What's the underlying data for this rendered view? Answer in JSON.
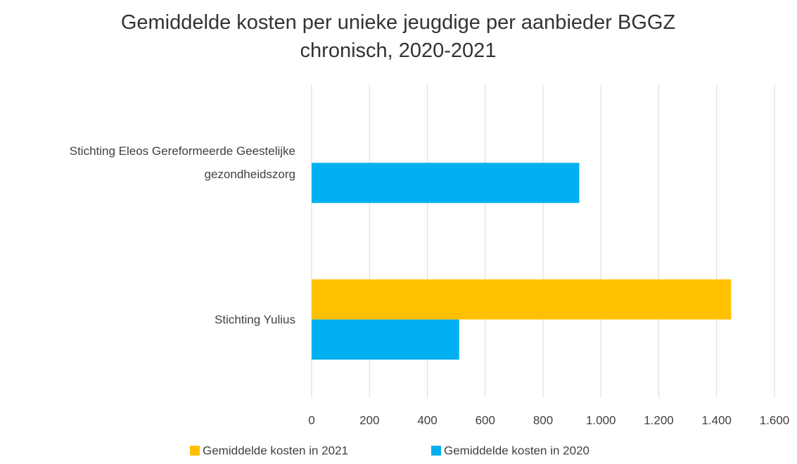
{
  "chart_data": {
    "type": "barh",
    "title": "Gemiddelde kosten per unieke jeugdige per aanbieder BGGZ chronisch, 2020-2021",
    "categories": [
      "Stichting Eleos Gereformeerde Geestelijke gezondheidszorg",
      "Stichting Yulius"
    ],
    "series": [
      {
        "name": "Gemiddelde kosten in 2021",
        "color": "#ffc000",
        "values": [
          null,
          1450
        ]
      },
      {
        "name": "Gemiddelde kosten in 2020",
        "color": "#00b0f0",
        "values": [
          925,
          510
        ]
      }
    ],
    "xlim": [
      0,
      1600
    ],
    "xticks": [
      0,
      200,
      400,
      600,
      800,
      {
        "value": 1000,
        "label": "1.000"
      },
      {
        "value": 1200,
        "label": "1.200"
      },
      {
        "value": 1400,
        "label": "1.400"
      },
      {
        "value": 1600,
        "label": "1.600"
      }
    ],
    "grid": true,
    "legend": "bottom"
  }
}
